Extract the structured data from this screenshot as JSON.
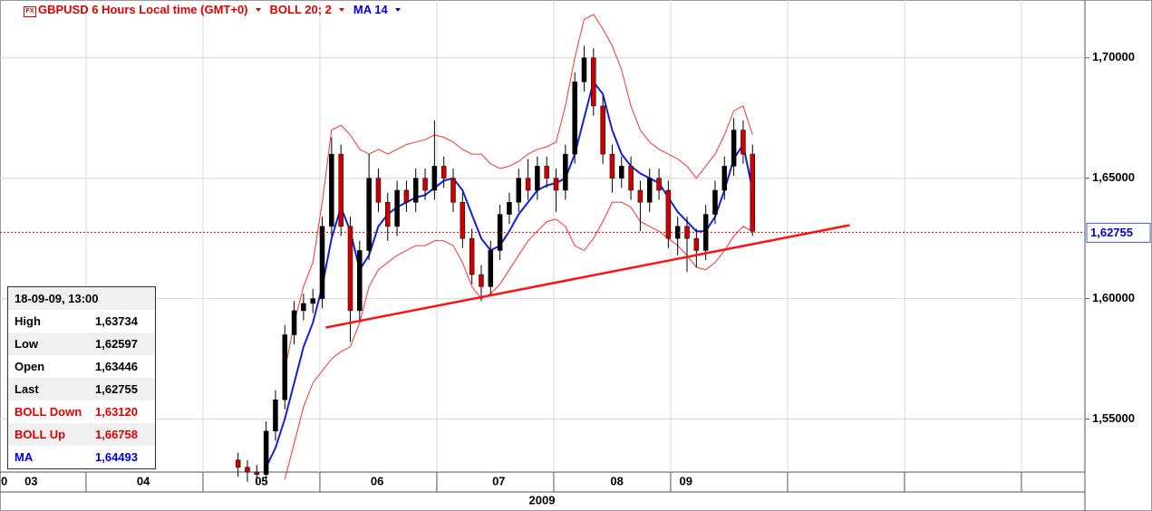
{
  "chart_data": {
    "type": "candlestick",
    "title": "GBPUSD 6 Hours Local time (GMT+0)",
    "title_color": "#e00000",
    "indicators": [
      {
        "name": "BOLL 20; 2",
        "color": "#e00000"
      },
      {
        "name": "MA 14",
        "color": "#0000e0"
      }
    ],
    "x": [
      5.3,
      5.38,
      5.46,
      5.54,
      5.62,
      5.7,
      5.78,
      5.86,
      5.94,
      6.02,
      6.1,
      6.18,
      6.26,
      6.34,
      6.42,
      6.5,
      6.58,
      6.66,
      6.74,
      6.82,
      6.9,
      6.98,
      7.06,
      7.14,
      7.22,
      7.3,
      7.38,
      7.46,
      7.54,
      7.62,
      7.7,
      7.78,
      7.86,
      7.94,
      8.02,
      8.1,
      8.18,
      8.26,
      8.34,
      8.42,
      8.5,
      8.58,
      8.66,
      8.74,
      8.82,
      8.9,
      8.98,
      9.06,
      9.14,
      9.22,
      9.3,
      9.38,
      9.46,
      9.54,
      9.62,
      9.7
    ],
    "open": [
      1.533,
      1.53,
      1.528,
      1.527,
      1.545,
      1.558,
      1.585,
      1.595,
      1.598,
      1.6,
      1.63,
      1.66,
      1.63,
      1.595,
      1.62,
      1.65,
      1.64,
      1.63,
      1.645,
      1.64,
      1.65,
      1.645,
      1.655,
      1.65,
      1.64,
      1.625,
      1.61,
      1.605,
      1.62,
      1.635,
      1.64,
      1.65,
      1.645,
      1.655,
      1.65,
      1.645,
      1.66,
      1.69,
      1.7,
      1.68,
      1.66,
      1.65,
      1.655,
      1.645,
      1.64,
      1.65,
      1.645,
      1.625,
      1.63,
      1.625,
      1.62,
      1.635,
      1.645,
      1.655,
      1.67,
      1.66
    ],
    "high": [
      1.536,
      1.533,
      1.531,
      1.549,
      1.562,
      1.589,
      1.599,
      1.602,
      1.604,
      1.634,
      1.667,
      1.664,
      1.634,
      1.624,
      1.66,
      1.654,
      1.644,
      1.649,
      1.649,
      1.654,
      1.654,
      1.674,
      1.659,
      1.654,
      1.644,
      1.629,
      1.614,
      1.624,
      1.639,
      1.644,
      1.654,
      1.658,
      1.659,
      1.659,
      1.654,
      1.664,
      1.694,
      1.705,
      1.704,
      1.684,
      1.664,
      1.659,
      1.659,
      1.649,
      1.654,
      1.654,
      1.649,
      1.634,
      1.634,
      1.629,
      1.639,
      1.649,
      1.659,
      1.675,
      1.674,
      1.664
    ],
    "low": [
      1.526,
      1.524,
      1.523,
      1.524,
      1.541,
      1.554,
      1.581,
      1.591,
      1.594,
      1.596,
      1.626,
      1.626,
      1.582,
      1.591,
      1.616,
      1.636,
      1.624,
      1.626,
      1.636,
      1.636,
      1.641,
      1.641,
      1.646,
      1.636,
      1.621,
      1.606,
      1.599,
      1.601,
      1.616,
      1.631,
      1.636,
      1.641,
      1.641,
      1.646,
      1.636,
      1.641,
      1.656,
      1.686,
      1.676,
      1.656,
      1.644,
      1.646,
      1.641,
      1.628,
      1.636,
      1.641,
      1.621,
      1.618,
      1.611,
      1.613,
      1.616,
      1.631,
      1.641,
      1.651,
      1.656,
      1.626
    ],
    "close": [
      1.53,
      1.528,
      1.527,
      1.545,
      1.558,
      1.585,
      1.595,
      1.598,
      1.6,
      1.63,
      1.66,
      1.63,
      1.595,
      1.62,
      1.65,
      1.64,
      1.63,
      1.645,
      1.64,
      1.65,
      1.645,
      1.655,
      1.65,
      1.64,
      1.625,
      1.61,
      1.605,
      1.62,
      1.635,
      1.64,
      1.65,
      1.645,
      1.655,
      1.65,
      1.645,
      1.66,
      1.69,
      1.7,
      1.68,
      1.66,
      1.65,
      1.655,
      1.645,
      1.64,
      1.65,
      1.645,
      1.625,
      1.63,
      1.625,
      1.62,
      1.635,
      1.645,
      1.655,
      1.67,
      1.66,
      1.628
    ],
    "up_color": "#000000",
    "down_color": "#cc0000",
    "series": [
      {
        "color": "#ff3030",
        "values": [
          null,
          null,
          null,
          null,
          null,
          1.57,
          1.59,
          1.605,
          1.615,
          1.64,
          1.67,
          1.672,
          1.668,
          1.662,
          1.66,
          1.662,
          1.66,
          1.662,
          1.664,
          1.665,
          1.666,
          1.668,
          1.667,
          1.665,
          1.662,
          1.66,
          1.66,
          1.656,
          1.654,
          1.655,
          1.657,
          1.66,
          1.662,
          1.663,
          1.665,
          1.68,
          1.7,
          1.716,
          1.718,
          1.712,
          1.705,
          1.695,
          1.68,
          1.67,
          1.665,
          1.662,
          1.66,
          1.658,
          1.655,
          1.65,
          1.655,
          1.66,
          1.668,
          1.678,
          1.68,
          1.668
        ]
      },
      {
        "color": "#ff3030",
        "values": [
          null,
          null,
          null,
          null,
          null,
          1.525,
          1.54,
          1.555,
          1.565,
          1.57,
          1.575,
          1.578,
          1.58,
          1.59,
          1.605,
          1.612,
          1.615,
          1.618,
          1.62,
          1.622,
          1.622,
          1.624,
          1.624,
          1.622,
          1.615,
          1.605,
          1.6,
          1.602,
          1.606,
          1.612,
          1.618,
          1.624,
          1.628,
          1.632,
          1.633,
          1.63,
          1.622,
          1.62,
          1.625,
          1.632,
          1.64,
          1.64,
          1.638,
          1.632,
          1.63,
          1.628,
          1.625,
          1.622,
          1.618,
          1.613,
          1.612,
          1.615,
          1.62,
          1.626,
          1.63,
          1.628
        ]
      },
      {
        "color": "#1020e0",
        "values": [
          null,
          null,
          null,
          1.53,
          1.538,
          1.55,
          1.565,
          1.58,
          1.59,
          1.605,
          1.625,
          1.638,
          1.628,
          1.612,
          1.618,
          1.63,
          1.635,
          1.638,
          1.64,
          1.642,
          1.643,
          1.646,
          1.649,
          1.65,
          1.645,
          1.635,
          1.625,
          1.62,
          1.622,
          1.628,
          1.635,
          1.64,
          1.645,
          1.647,
          1.648,
          1.65,
          1.66,
          1.675,
          1.69,
          1.685,
          1.67,
          1.66,
          1.655,
          1.652,
          1.65,
          1.648,
          1.642,
          1.636,
          1.632,
          1.628,
          1.628,
          1.634,
          1.645,
          1.658,
          1.664,
          1.645
        ]
      }
    ],
    "trendline": {
      "x": [
        6.05,
        10.53
      ],
      "y": [
        1.588,
        1.6305
      ],
      "color": "#ff1010"
    },
    "last_price": {
      "value": 1.62755,
      "label": "1,62755",
      "color": "#cc0000"
    },
    "xlim": [
      3.264,
      12.543
    ],
    "ylim": [
      1.528,
      1.724
    ],
    "yticks": [
      {
        "value": 1.55,
        "label": "1,55000"
      },
      {
        "value": 1.6,
        "label": "1,60000"
      },
      {
        "value": 1.65,
        "label": "1,65000"
      },
      {
        "value": 1.7,
        "label": "1,70000"
      }
    ],
    "xticks": [
      4,
      5,
      6,
      7,
      8,
      9,
      10,
      11,
      12
    ],
    "xtick_labels": [
      {
        "value": 3.3,
        "label": "0"
      },
      {
        "value": 3.53,
        "label": "03"
      },
      {
        "value": 4.49,
        "label": "04"
      },
      {
        "value": 5.5,
        "label": "05"
      },
      {
        "value": 6.49,
        "label": "06"
      },
      {
        "value": 7.53,
        "label": "07"
      },
      {
        "value": 8.54,
        "label": "08"
      },
      {
        "value": 9.13,
        "label": "09"
      }
    ],
    "year_label": "2009",
    "grid": true,
    "info_box": {
      "date": "18-09-09, 13:00",
      "rows": [
        {
          "label": "High",
          "value": "1,63734",
          "color": "#000000"
        },
        {
          "label": "Low",
          "value": "1,62597",
          "color": "#000000"
        },
        {
          "label": "Open",
          "value": "1,63446",
          "color": "#000000"
        },
        {
          "label": "Last",
          "value": "1,62755",
          "color": "#000000"
        },
        {
          "label": "BOLL Down",
          "value": "1,63120",
          "color": "#e00000"
        },
        {
          "label": "BOLL Up",
          "value": "1,66758",
          "color": "#e00000"
        },
        {
          "label": "MA",
          "value": "1,64493",
          "color": "#0000e0"
        }
      ]
    }
  }
}
